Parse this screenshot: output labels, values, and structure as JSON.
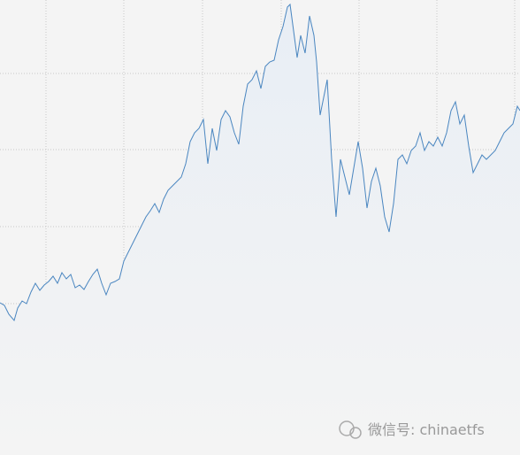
{
  "chart_data": {
    "type": "area",
    "watermark": "微信号: chinaetfs",
    "color": "#4a86c0",
    "fill": "#e8eef5",
    "grid": true,
    "xlim": [
      0,
      588
    ],
    "ylim": [
      0,
      514
    ],
    "xticks": [
      52,
      140,
      229,
      318,
      406,
      494,
      582
    ],
    "yticks": [
      84,
      171,
      258,
      345,
      431
    ],
    "x": [
      0,
      5,
      10,
      16,
      20,
      25,
      30,
      35,
      40,
      45,
      50,
      55,
      60,
      65,
      70,
      75,
      80,
      85,
      90,
      95,
      100,
      105,
      110,
      115,
      120,
      125,
      130,
      135,
      140,
      145,
      150,
      155,
      160,
      165,
      170,
      175,
      180,
      185,
      190,
      195,
      200,
      205,
      210,
      215,
      220,
      225,
      230,
      235,
      240,
      245,
      250,
      255,
      260,
      265,
      270,
      275,
      280,
      285,
      290,
      295,
      300,
      305,
      310,
      315,
      320,
      325,
      328,
      332,
      336,
      340,
      345,
      350,
      355,
      358,
      362,
      366,
      370,
      375,
      380,
      385,
      390,
      395,
      400,
      405,
      410,
      415,
      420,
      425,
      430,
      435,
      440,
      445,
      450,
      455,
      460,
      465,
      470,
      475,
      480,
      485,
      490,
      495,
      500,
      505,
      510,
      515,
      520,
      525,
      530,
      535,
      540,
      545,
      550,
      555,
      560,
      565,
      570,
      575,
      580,
      585,
      588
    ],
    "values": [
      172,
      169,
      159,
      152,
      166,
      174,
      171,
      184,
      194,
      186,
      192,
      196,
      202,
      194,
      206,
      199,
      204,
      189,
      192,
      187,
      196,
      204,
      210,
      194,
      181,
      194,
      196,
      199,
      219,
      229,
      239,
      249,
      259,
      269,
      276,
      284,
      274,
      289,
      299,
      304,
      309,
      314,
      329,
      354,
      364,
      369,
      379,
      329,
      369,
      344,
      379,
      389,
      382,
      364,
      351,
      394,
      419,
      424,
      434,
      414,
      439,
      444,
      446,
      469,
      484,
      506,
      509,
      479,
      449,
      474,
      454,
      496,
      474,
      444,
      384,
      404,
      424,
      334,
      269,
      334,
      314,
      294,
      324,
      354,
      324,
      279,
      309,
      324,
      304,
      269,
      252,
      284,
      334,
      339,
      329,
      344,
      349,
      364,
      344,
      354,
      349,
      359,
      349,
      364,
      389,
      399,
      374,
      384,
      349,
      319,
      329,
      339,
      334,
      339,
      344,
      354,
      364,
      369,
      374,
      394,
      389
    ]
  }
}
